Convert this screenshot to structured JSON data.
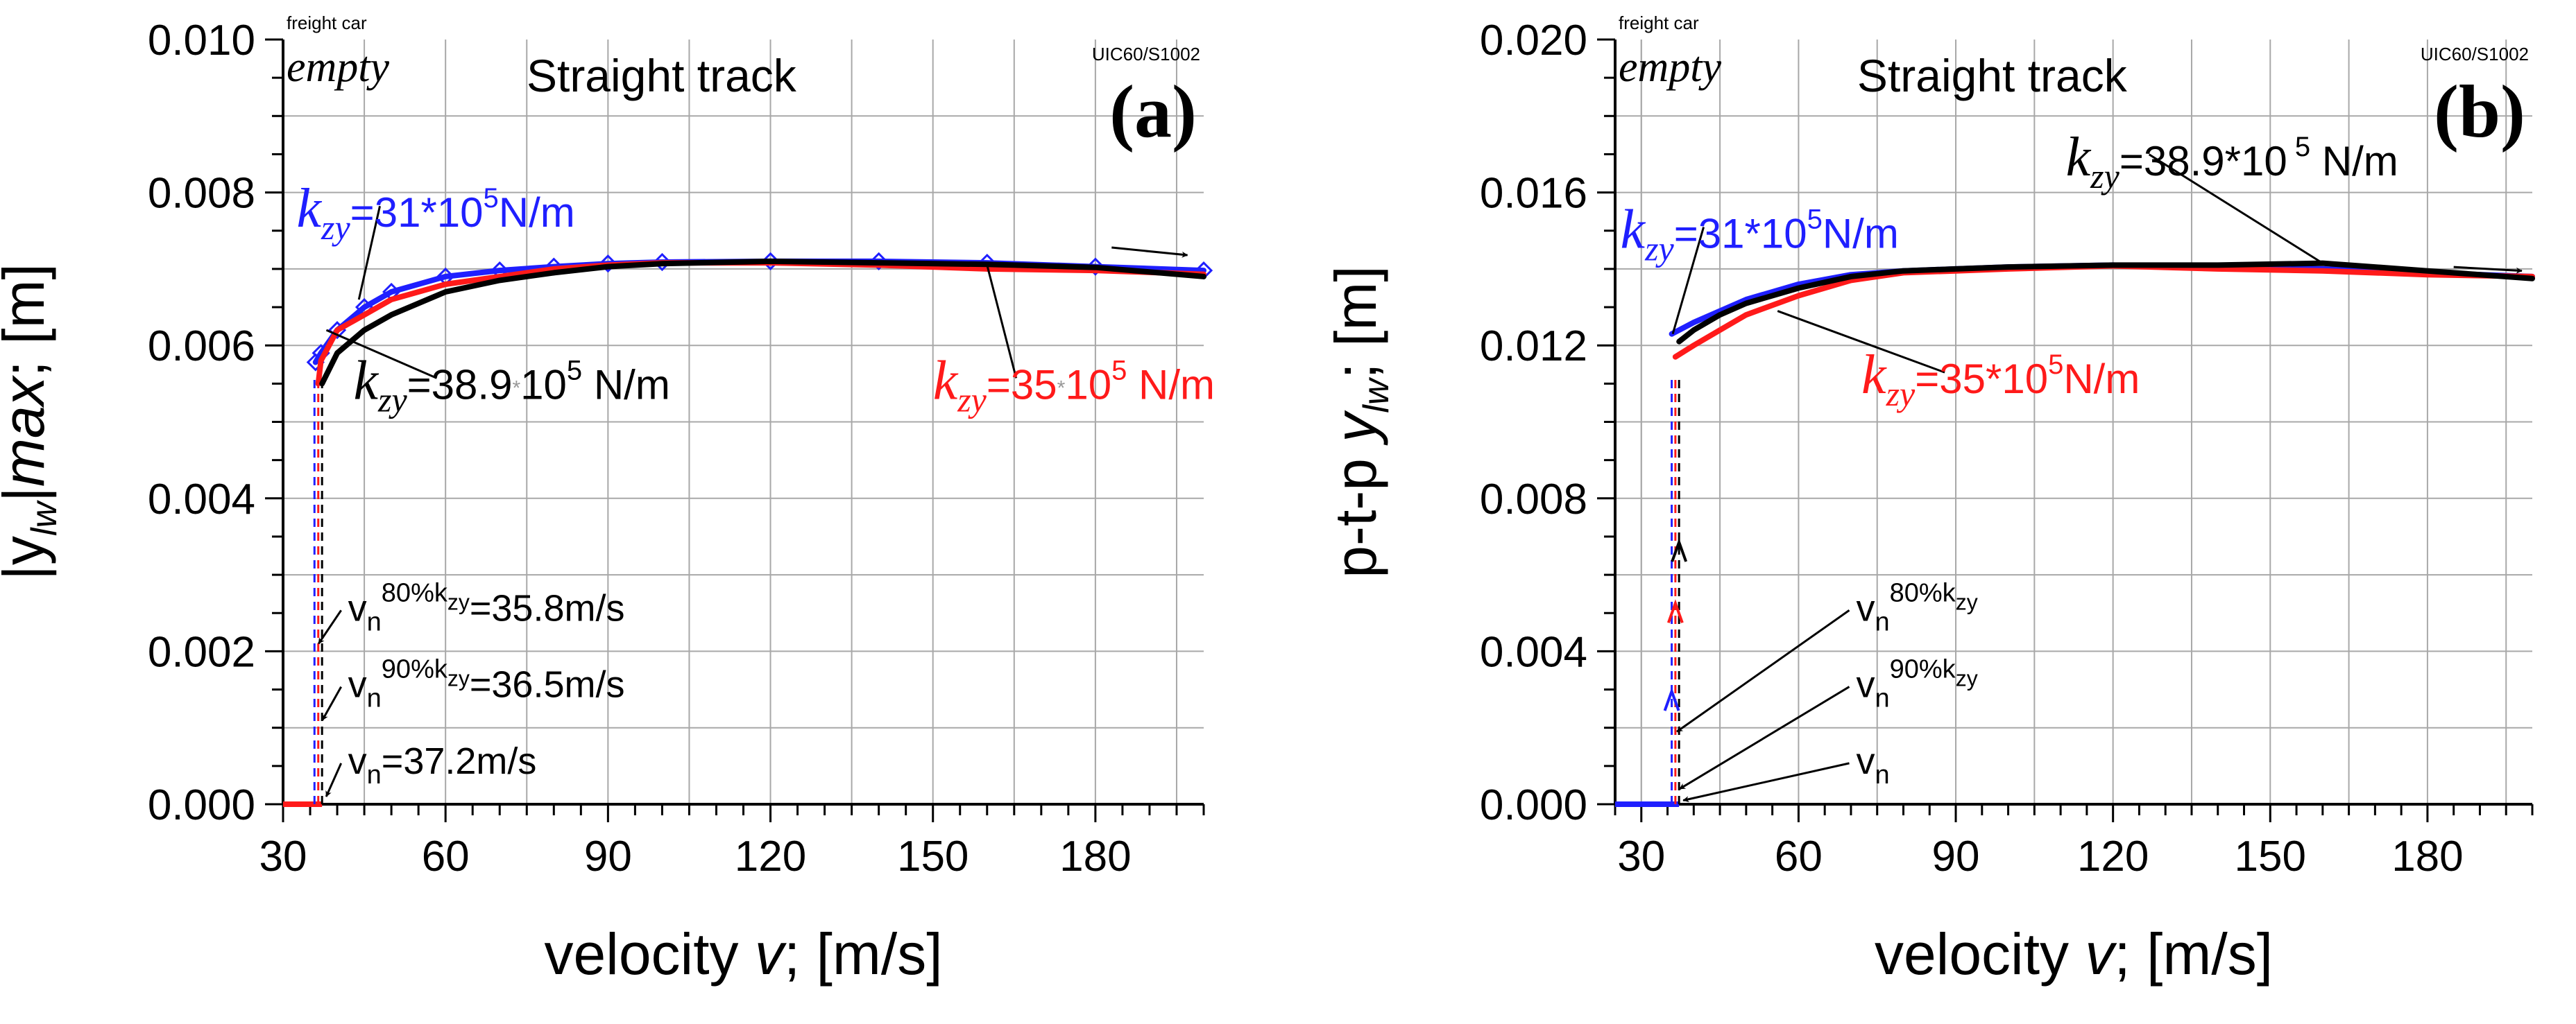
{
  "colors": {
    "series_31": "#1f1fff",
    "series_35": "#ff1a1a",
    "series_389": "#000000",
    "grid": "#a8a8a8",
    "axis": "#000000"
  },
  "chart_data": [
    {
      "type": "line",
      "panel_label": "(a)",
      "title": "Straight track",
      "corner_label_left": "freight car",
      "state_label": "empty",
      "corner_label_right": "UIC60/S1002",
      "xlabel": "velocity v; [m/s]",
      "xlabel_parts": {
        "pre": "velocity ",
        "var": "v",
        "post": "; [m/s]"
      },
      "ylabel": "|ylw|max; [m]",
      "ylabel_parts": {
        "pre": "|y",
        "sub": "lw",
        "mid": "|",
        "var": "max",
        "post": "; [m]"
      },
      "xlim": [
        30,
        200
      ],
      "ylim": [
        0,
        0.01
      ],
      "xticks": [
        30,
        60,
        90,
        120,
        150,
        180
      ],
      "xtick_labels": [
        "30",
        "60",
        "90",
        "120",
        "150",
        "180"
      ],
      "yticks": [
        0,
        0.002,
        0.004,
        0.006,
        0.008,
        0.01
      ],
      "ytick_labels": [
        "0.000",
        "0.002",
        "0.004",
        "0.006",
        "0.008",
        "0.010"
      ],
      "grid": true,
      "series": [
        {
          "name": "kzy=31*10^5N/m",
          "color_key": "series_31",
          "marker": "diamond",
          "x": [
            36,
            37,
            40,
            45,
            50,
            60,
            70,
            80,
            90,
            100,
            120,
            140,
            160,
            180,
            200
          ],
          "y": [
            0.00578,
            0.0059,
            0.0062,
            0.0065,
            0.0067,
            0.0069,
            0.00698,
            0.00703,
            0.00707,
            0.00709,
            0.0071,
            0.0071,
            0.00708,
            0.00703,
            0.00698
          ]
        },
        {
          "name": "kzy=35*10^5 N/m",
          "color_key": "series_35",
          "x": [
            36.5,
            37,
            40,
            45,
            50,
            60,
            70,
            80,
            90,
            100,
            120,
            140,
            160,
            180,
            200
          ],
          "y": [
            0.0055,
            0.0058,
            0.0062,
            0.0064,
            0.0066,
            0.0068,
            0.0069,
            0.007,
            0.00705,
            0.00708,
            0.00708,
            0.00705,
            0.007,
            0.00698,
            0.00693
          ]
        },
        {
          "name": "kzy=38.9*10^5 N/m",
          "color_key": "series_389",
          "x": [
            37.2,
            40,
            45,
            50,
            60,
            70,
            80,
            90,
            100,
            120,
            140,
            160,
            180,
            200
          ],
          "y": [
            0.0055,
            0.0059,
            0.0062,
            0.0064,
            0.0067,
            0.00685,
            0.00695,
            0.00703,
            0.00707,
            0.0071,
            0.00708,
            0.00706,
            0.00702,
            0.0069
          ]
        }
      ],
      "flat_segments": [
        {
          "color_key": "series_35",
          "x": [
            30,
            37.2
          ],
          "y": [
            0,
            0
          ]
        }
      ],
      "threshold_lines": [
        {
          "x": 35.8,
          "color_key": "series_31"
        },
        {
          "x": 36.5,
          "color_key": "series_35"
        },
        {
          "x": 37.2,
          "color_key": "series_389"
        }
      ],
      "series_labels": [
        {
          "k": "k",
          "sub": "zy",
          "rest": "=31*10",
          "exp": "5",
          "unit": "N/m",
          "color_key": "series_31",
          "lx": 32.5,
          "ly": 0.00755,
          "ax": 44,
          "ay": 0.0066
        },
        {
          "k": "k",
          "sub": "zy",
          "rest": "=38.9",
          "mid": "*",
          "rest2": "10",
          "exp": "5",
          "unit": " N/m",
          "color_key": "series_389",
          "lx": 43,
          "ly": 0.0053,
          "ax": 38,
          "ay": 0.0062
        },
        {
          "k": "k",
          "sub": "zy",
          "rest": "=35",
          "mid": "*",
          "rest2": "10",
          "exp": "5",
          "unit": " N/m",
          "color_key": "series_35",
          "lx": 150,
          "ly": 0.0053,
          "ax": 160,
          "ay": 0.00705
        }
      ],
      "speed_annotations": [
        {
          "base": "v",
          "sub": "n",
          "sup": "80%k",
          "supsub": "zy",
          "rest": "=35.8m/s",
          "lx": 42,
          "ly": 0.0024,
          "ax": 35.8,
          "ay": 0.0021
        },
        {
          "base": "v",
          "sub": "n",
          "sup": "90%k",
          "supsub": "zy",
          "rest": "=36.5m/s",
          "lx": 42,
          "ly": 0.0014,
          "ax": 36.5,
          "ay": 0.0011
        },
        {
          "base": "v",
          "sub": "n",
          "rest": "=37.2m/s",
          "lx": 42,
          "ly": 0.0004,
          "ax": 37.2,
          "ay": 0.0001
        }
      ],
      "right_arrow": {
        "x1": 183,
        "y1": 0.00728,
        "x2": 197,
        "y2": 0.00718
      }
    },
    {
      "type": "line",
      "panel_label": "(b)",
      "title": "Straight track",
      "corner_label_left": "freight car",
      "state_label": "empty",
      "corner_label_right": "UIC60/S1002",
      "xlabel": "velocity v; [m/s]",
      "xlabel_parts": {
        "pre": "velocity ",
        "var": "v",
        "post": "; [m/s]"
      },
      "ylabel": "p-t-p ylw; [m]",
      "ylabel_parts": {
        "pre": "p-t-p ",
        "var": "y",
        "sub": "lw",
        "post": "; [m]"
      },
      "xlim": [
        25,
        200
      ],
      "ylim": [
        0,
        0.02
      ],
      "xticks": [
        30,
        60,
        90,
        120,
        150,
        180
      ],
      "xtick_labels": [
        "30",
        "60",
        "90",
        "120",
        "150",
        "180"
      ],
      "yticks": [
        0,
        0.004,
        0.008,
        0.012,
        0.016,
        0.02
      ],
      "ytick_labels": [
        "0.000",
        "0.004",
        "0.008",
        "0.012",
        "0.016",
        "0.020"
      ],
      "grid": true,
      "series": [
        {
          "name": "kzy=31*10^5N/m",
          "color_key": "series_31",
          "x": [
            35.8,
            40,
            45,
            50,
            60,
            70,
            80,
            90,
            100,
            120,
            140,
            160,
            180,
            200
          ],
          "y": [
            0.0123,
            0.0126,
            0.0129,
            0.0132,
            0.0136,
            0.01385,
            0.01395,
            0.014,
            0.01405,
            0.0141,
            0.01405,
            0.014,
            0.0139,
            0.0138
          ]
        },
        {
          "name": "kzy=35*10^5N/m",
          "color_key": "series_35",
          "x": [
            36.5,
            40,
            45,
            50,
            60,
            70,
            80,
            90,
            100,
            120,
            140,
            160,
            180,
            200
          ],
          "y": [
            0.0117,
            0.012,
            0.0124,
            0.0128,
            0.0133,
            0.0137,
            0.0139,
            0.01395,
            0.014,
            0.01408,
            0.014,
            0.01395,
            0.01385,
            0.0138
          ]
        },
        {
          "name": "kzy=38.9*10^5 N/m",
          "color_key": "series_389",
          "x": [
            37.2,
            40,
            45,
            50,
            60,
            70,
            80,
            90,
            100,
            120,
            140,
            160,
            180,
            200
          ],
          "y": [
            0.0121,
            0.0124,
            0.0128,
            0.0131,
            0.0135,
            0.0138,
            0.01395,
            0.014,
            0.01405,
            0.0141,
            0.0141,
            0.01415,
            0.01395,
            0.01375
          ]
        }
      ],
      "flat_segments": [
        {
          "color_key": "series_31",
          "x": [
            25,
            37.2
          ],
          "y": [
            0,
            0
          ]
        }
      ],
      "threshold_lines": [
        {
          "x": 35.8,
          "color_key": "series_31"
        },
        {
          "x": 36.5,
          "color_key": "series_35"
        },
        {
          "x": 37.2,
          "color_key": "series_389"
        }
      ],
      "up_arrows": [
        {
          "x": 35.8,
          "y": 0.0027,
          "color_key": "series_31"
        },
        {
          "x": 36.5,
          "y": 0.005,
          "color_key": "series_35"
        },
        {
          "x": 37.2,
          "y": 0.0066,
          "color_key": "series_389"
        }
      ],
      "series_labels": [
        {
          "k": "k",
          "sub": "zy",
          "rest": "=31*10",
          "exp": "5",
          "unit": "N/m",
          "color_key": "series_31",
          "lx": 26,
          "ly": 0.01455,
          "ax": 36,
          "ay": 0.0123
        },
        {
          "k": "k",
          "sub": "zy",
          "rest": "=38.9*10",
          "exp": " 5",
          "unit": " N/m",
          "color_key": "series_389",
          "lx": 111,
          "ly": 0.01645,
          "ax": 160,
          "ay": 0.01415
        },
        {
          "k": "k",
          "sub": "zy",
          "rest": "=35*10",
          "exp": "5",
          "unit": "N/m",
          "color_key": "series_35",
          "lx": 72,
          "ly": 0.01075,
          "ax": 56,
          "ay": 0.0129
        }
      ],
      "speed_annotations": [
        {
          "base": "v",
          "sub": "n",
          "sup": "80%k",
          "supsub": "zy",
          "lx": 71,
          "ly": 0.0048,
          "ax": 36.0,
          "ay": 0.0019
        },
        {
          "base": "v",
          "sub": "n",
          "sup": "90%k",
          "supsub": "zy",
          "lx": 71,
          "ly": 0.0028,
          "ax": 36.5,
          "ay": 0.0004
        },
        {
          "base": "v",
          "sub": "n",
          "lx": 71,
          "ly": 0.0008,
          "ax": 37.2,
          "ay": 0.0001
        }
      ],
      "right_arrow": {
        "x1": 185,
        "y1": 0.01405,
        "x2": 198,
        "y2": 0.01395
      }
    }
  ]
}
